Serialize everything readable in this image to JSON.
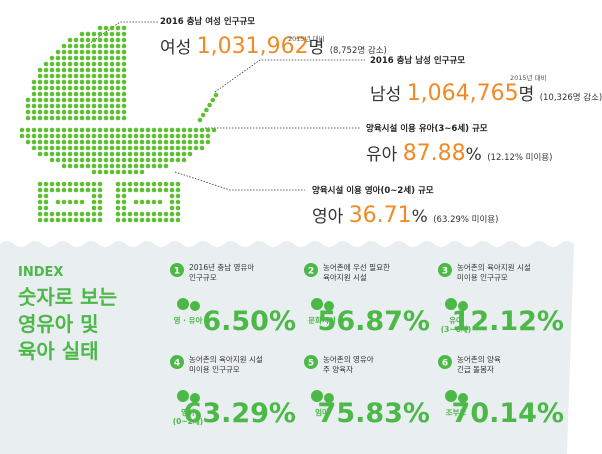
{
  "top": [
    {
      "heading": "2016 충남 여성 인구규모",
      "label": "여성",
      "value": "1,031,962",
      "unit": "명",
      "note_top": "2015년 대비",
      "note": "(8,752명 감소)"
    },
    {
      "heading": "2016 충남 남성 인구규모",
      "label": "남성",
      "value": "1,064,765",
      "unit": "명",
      "note_top": "2015년 대비",
      "note": "(10,326명 감소)"
    },
    {
      "heading": "양육시설 이용 유아(3~6세) 규모",
      "label": "유아",
      "value": "87.88",
      "unit": "%",
      "note": "(12.12% 미이용)"
    },
    {
      "heading": "양육시설 이용 영아(0~2세) 규모",
      "label": "영아",
      "value": "36.71",
      "unit": "%",
      "note": "(63.29% 미이용)"
    }
  ],
  "index": {
    "tag": "INDEX",
    "title": [
      "숫자로 보는",
      "영유아 및",
      "육아 실태"
    ]
  },
  "items": [
    {
      "num": "1",
      "text": [
        "2016년 충남 영유아",
        "인구규모"
      ],
      "icon_label": [
        "영 · 유아"
      ],
      "value": "6.50%"
    },
    {
      "num": "2",
      "text": [
        "농어촌에 우선 필요한",
        "육아지원 시설"
      ],
      "icon_label": [
        "문화시설"
      ],
      "value": "56.87%"
    },
    {
      "num": "3",
      "text": [
        "농어촌의 육아지원 시설",
        "미이용 인구규모"
      ],
      "icon_label": [
        "유아",
        "(3~6세)"
      ],
      "value": "12.12%"
    },
    {
      "num": "4",
      "text": [
        "농어촌의 육아지원 시설",
        "미이용 인구규모"
      ],
      "icon_label": [
        "영아",
        "(0~2세)"
      ],
      "value": "63.29%"
    },
    {
      "num": "5",
      "text": [
        "농어촌의 영유아",
        "주 양육자"
      ],
      "icon_label": [
        "엄마"
      ],
      "value": "75.83%"
    },
    {
      "num": "6",
      "text": [
        "농어촌의 양육",
        "긴급 돌봄자"
      ],
      "icon_label": [
        "조부모"
      ],
      "value": "70.14%"
    }
  ]
}
